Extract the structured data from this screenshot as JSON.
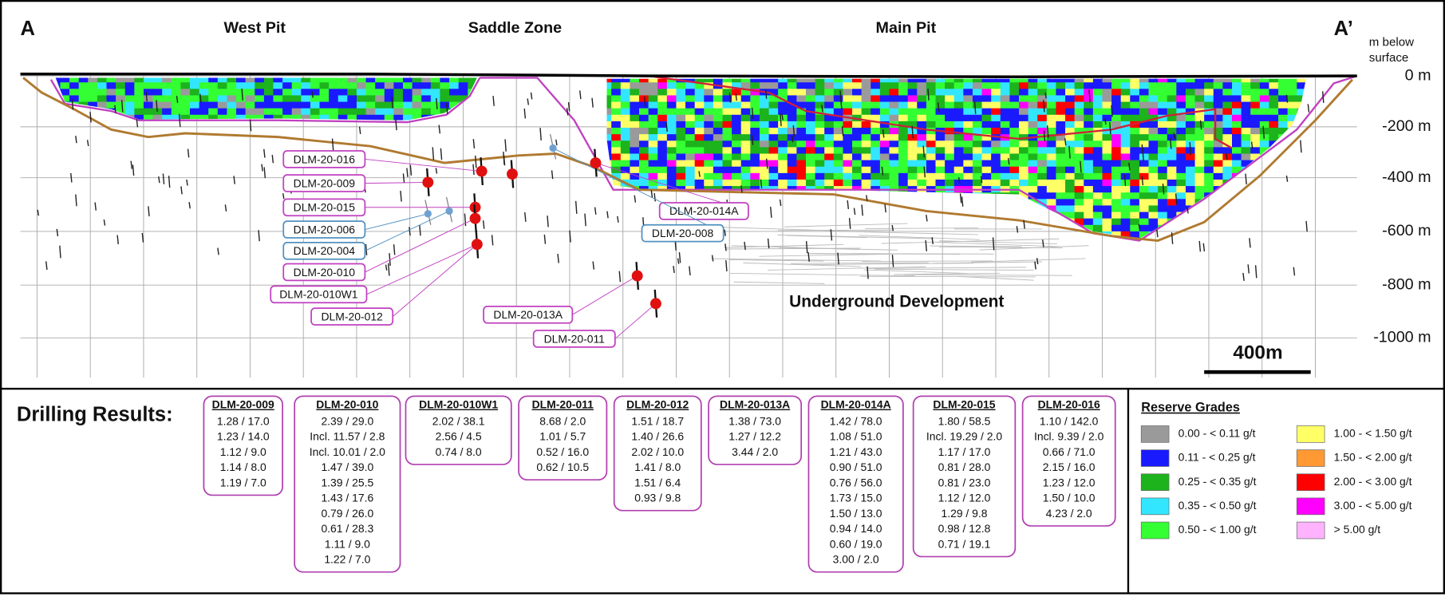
{
  "section": {
    "left_label": "A",
    "right_label": "A’",
    "zones": [
      "West Pit",
      "Saddle Zone",
      "Main Pit"
    ],
    "depth_title": [
      "m below",
      "surface"
    ],
    "depths": [
      "0 m",
      "-200 m",
      "-400 m",
      "-600 m",
      "-800 m",
      "-1000 m"
    ],
    "scale_bar": "400m",
    "underground": "Underground Development",
    "holes": [
      {
        "label": "DLM-20-016",
        "border": "#c040c0"
      },
      {
        "label": "DLM-20-009",
        "border": "#c040c0"
      },
      {
        "label": "DLM-20-015",
        "border": "#c040c0"
      },
      {
        "label": "DLM-20-006",
        "border": "#5090c0"
      },
      {
        "label": "DLM-20-004",
        "border": "#5090c0"
      },
      {
        "label": "DLM-20-010",
        "border": "#c040c0"
      },
      {
        "label": "DLM-20-010W1",
        "border": "#c040c0"
      },
      {
        "label": "DLM-20-012",
        "border": "#c040c0"
      },
      {
        "label": "DLM-20-013A",
        "border": "#c040c0"
      },
      {
        "label": "DLM-20-011",
        "border": "#c040c0"
      },
      {
        "label": "DLM-20-014A",
        "border": "#c040c0"
      },
      {
        "label": "DLM-20-008",
        "border": "#5090c0"
      }
    ]
  },
  "results": {
    "title": "Drilling Results:",
    "holes": [
      {
        "name": "DLM-20-009",
        "intervals": [
          "1.28 / 17.0",
          "1.23 / 14.0",
          "1.12 / 9.0",
          "1.14 / 8.0",
          "1.19 / 7.0"
        ]
      },
      {
        "name": "DLM-20-010",
        "intervals": [
          "2.39 / 29.0",
          "Incl. 11.57 / 2.8",
          "Incl. 10.01 / 2.0",
          "1.47 / 39.0",
          "1.39 / 25.5",
          "1.43 / 17.6",
          "0.79 / 26.0",
          "0.61 / 28.3",
          "1.11 / 9.0",
          "1.22 / 7.0"
        ]
      },
      {
        "name": "DLM-20-010W1",
        "intervals": [
          "2.02 / 38.1",
          "2.56 / 4.5",
          "0.74 / 8.0"
        ]
      },
      {
        "name": "DLM-20-011",
        "intervals": [
          "8.68 / 2.0",
          "1.01 / 5.7",
          "0.52 / 16.0",
          "0.62 / 10.5"
        ]
      },
      {
        "name": "DLM-20-012",
        "intervals": [
          "1.51 / 18.7",
          "1.40 / 26.6",
          "2.02 / 10.0",
          "1.41 / 8.0",
          "1.51 / 6.4",
          "0.93 / 9.8"
        ]
      },
      {
        "name": "DLM-20-013A",
        "intervals": [
          "1.38 / 73.0",
          "1.27 / 12.2",
          "3.44 / 2.0"
        ]
      },
      {
        "name": "DLM-20-014A",
        "intervals": [
          "1.42 / 78.0",
          "1.08 / 51.0",
          "1.21 / 43.0",
          "0.90 / 51.0",
          "0.76 / 56.0",
          "1.73 / 15.0",
          "1.50 / 13.0",
          "0.94 / 14.0",
          "0.60 / 19.0",
          "3.00 / 2.0"
        ]
      },
      {
        "name": "DLM-20-015",
        "intervals": [
          "1.80 / 58.5",
          "Incl. 19.29 / 2.0",
          "1.17 / 17.0",
          "0.81 / 28.0",
          "0.81 / 23.0",
          "1.12 / 12.0",
          "1.29 / 9.8",
          "0.98 / 12.8",
          "0.71 / 19.1"
        ]
      },
      {
        "name": "DLM-20-016",
        "intervals": [
          "1.10 / 142.0",
          "Incl. 9.39 / 2.0",
          "0.66 / 71.0",
          "2.15 / 16.0",
          "1.23 / 12.0",
          "1.50 / 10.0",
          "4.23 / 2.0"
        ]
      }
    ]
  },
  "legend": {
    "title": "Reserve Grades",
    "items": [
      {
        "label": "0.00 - < 0.11 g/t",
        "color": "#9a9a9a"
      },
      {
        "label": "0.11 - < 0.25 g/t",
        "color": "#1a1aff"
      },
      {
        "label": "0.25 - < 0.35 g/t",
        "color": "#1cb31c"
      },
      {
        "label": "0.35 - < 0.50 g/t",
        "color": "#33e6ff"
      },
      {
        "label": "0.50 - < 1.00 g/t",
        "color": "#33ff33"
      },
      {
        "label": "1.00 - < 1.50 g/t",
        "color": "#ffff66"
      },
      {
        "label": "1.50 - < 2.00 g/t",
        "color": "#ff9933"
      },
      {
        "label": "2.00 - < 3.00 g/t",
        "color": "#ff0000"
      },
      {
        "label": "3.00 - < 5.00 g/t",
        "color": "#ff00ff"
      },
      {
        "label": "> 5.00 g/t",
        "color": "#ffb3ff"
      }
    ]
  }
}
